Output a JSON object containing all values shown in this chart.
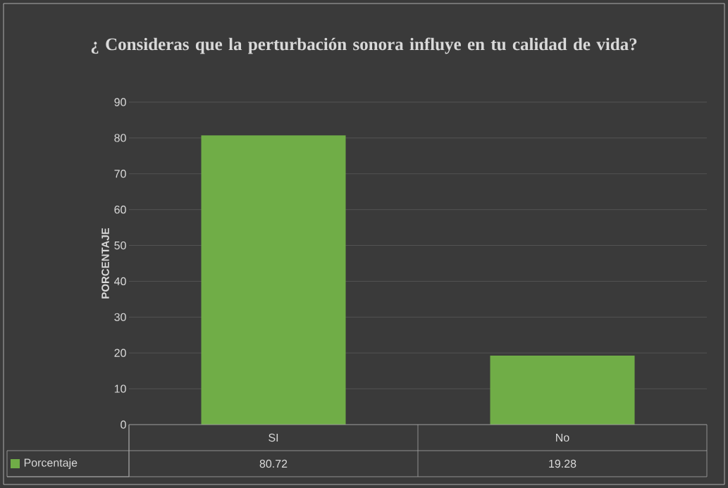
{
  "chart_data": {
    "type": "bar",
    "title": "¿ Consideras que la perturbación sonora influye en tu calidad de vida?",
    "ylabel": "PORCENTAJE",
    "categories": [
      "SI",
      "No"
    ],
    "series": [
      {
        "name": "Porcentaje",
        "color": "#70ad47",
        "values": [
          80.72,
          19.28
        ]
      }
    ],
    "ylim": [
      0,
      90
    ],
    "yticks": [
      0,
      10,
      20,
      30,
      40,
      50,
      60,
      70,
      80,
      90
    ],
    "grid": "y",
    "legend": "bottom",
    "data_labels": true
  }
}
